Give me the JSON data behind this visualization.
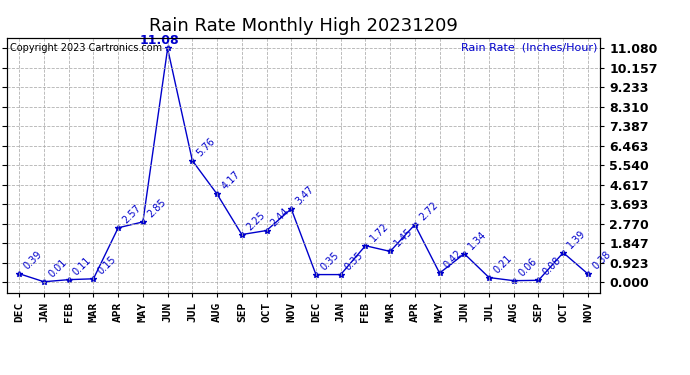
{
  "title": "Rain Rate Monthly High 20231209",
  "ylabel": "Rain Rate  (Inches/Hour)",
  "copyright": "Copyright 2023 Cartronics.com",
  "line_color": "#0000CC",
  "background_color": "#ffffff",
  "grid_color": "#aaaaaa",
  "months": [
    "DEC",
    "JAN",
    "FEB",
    "MAR",
    "APR",
    "MAY",
    "JUN",
    "JUL",
    "AUG",
    "SEP",
    "OCT",
    "NOV",
    "DEC",
    "JAN",
    "FEB",
    "MAR",
    "APR",
    "MAY",
    "JUN",
    "JUL",
    "AUG",
    "SEP",
    "OCT",
    "NOV"
  ],
  "values": [
    0.39,
    0.01,
    0.11,
    0.15,
    2.57,
    2.85,
    11.08,
    5.76,
    4.17,
    2.25,
    2.44,
    3.47,
    0.35,
    0.35,
    1.72,
    1.45,
    2.72,
    0.42,
    1.34,
    0.21,
    0.06,
    0.08,
    1.39,
    0.38
  ],
  "yticks": [
    0.0,
    0.923,
    1.847,
    2.77,
    3.693,
    4.617,
    5.54,
    6.463,
    7.387,
    8.31,
    9.233,
    10.157,
    11.08
  ],
  "title_fontsize": 13,
  "axis_label_fontsize": 8,
  "annotation_fontsize": 7,
  "copyright_fontsize": 7,
  "ylabel_fontsize": 8
}
